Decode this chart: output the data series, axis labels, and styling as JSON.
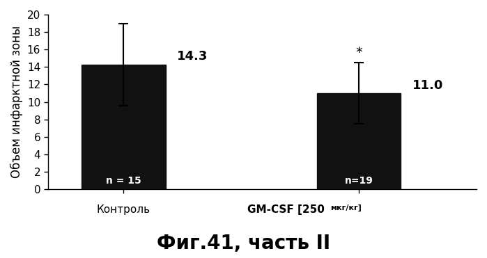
{
  "categories": [
    "Контроль",
    "GM-CSF [250 мкг/кг]"
  ],
  "values": [
    14.3,
    11.0
  ],
  "errors_upper": [
    4.7,
    3.5
  ],
  "errors_lower": [
    4.7,
    3.5
  ],
  "bar_color": "#111111",
  "bar_width": 0.5,
  "ylabel": "Объем инфарктной зоны",
  "ylim": [
    0,
    20
  ],
  "yticks": [
    0,
    2,
    4,
    6,
    8,
    10,
    12,
    14,
    16,
    18,
    20
  ],
  "value_labels": [
    "14.3",
    "11.0"
  ],
  "n_labels": [
    "n = 15",
    "n=19"
  ],
  "significance_label": "*",
  "title": "Фиг.41, часть II",
  "title_fontsize": 20,
  "ylabel_fontsize": 12,
  "tick_fontsize": 11,
  "value_label_fontsize": 13,
  "n_label_fontsize": 10,
  "background_color": "#ffffff",
  "x_positions": [
    1.0,
    2.4
  ]
}
